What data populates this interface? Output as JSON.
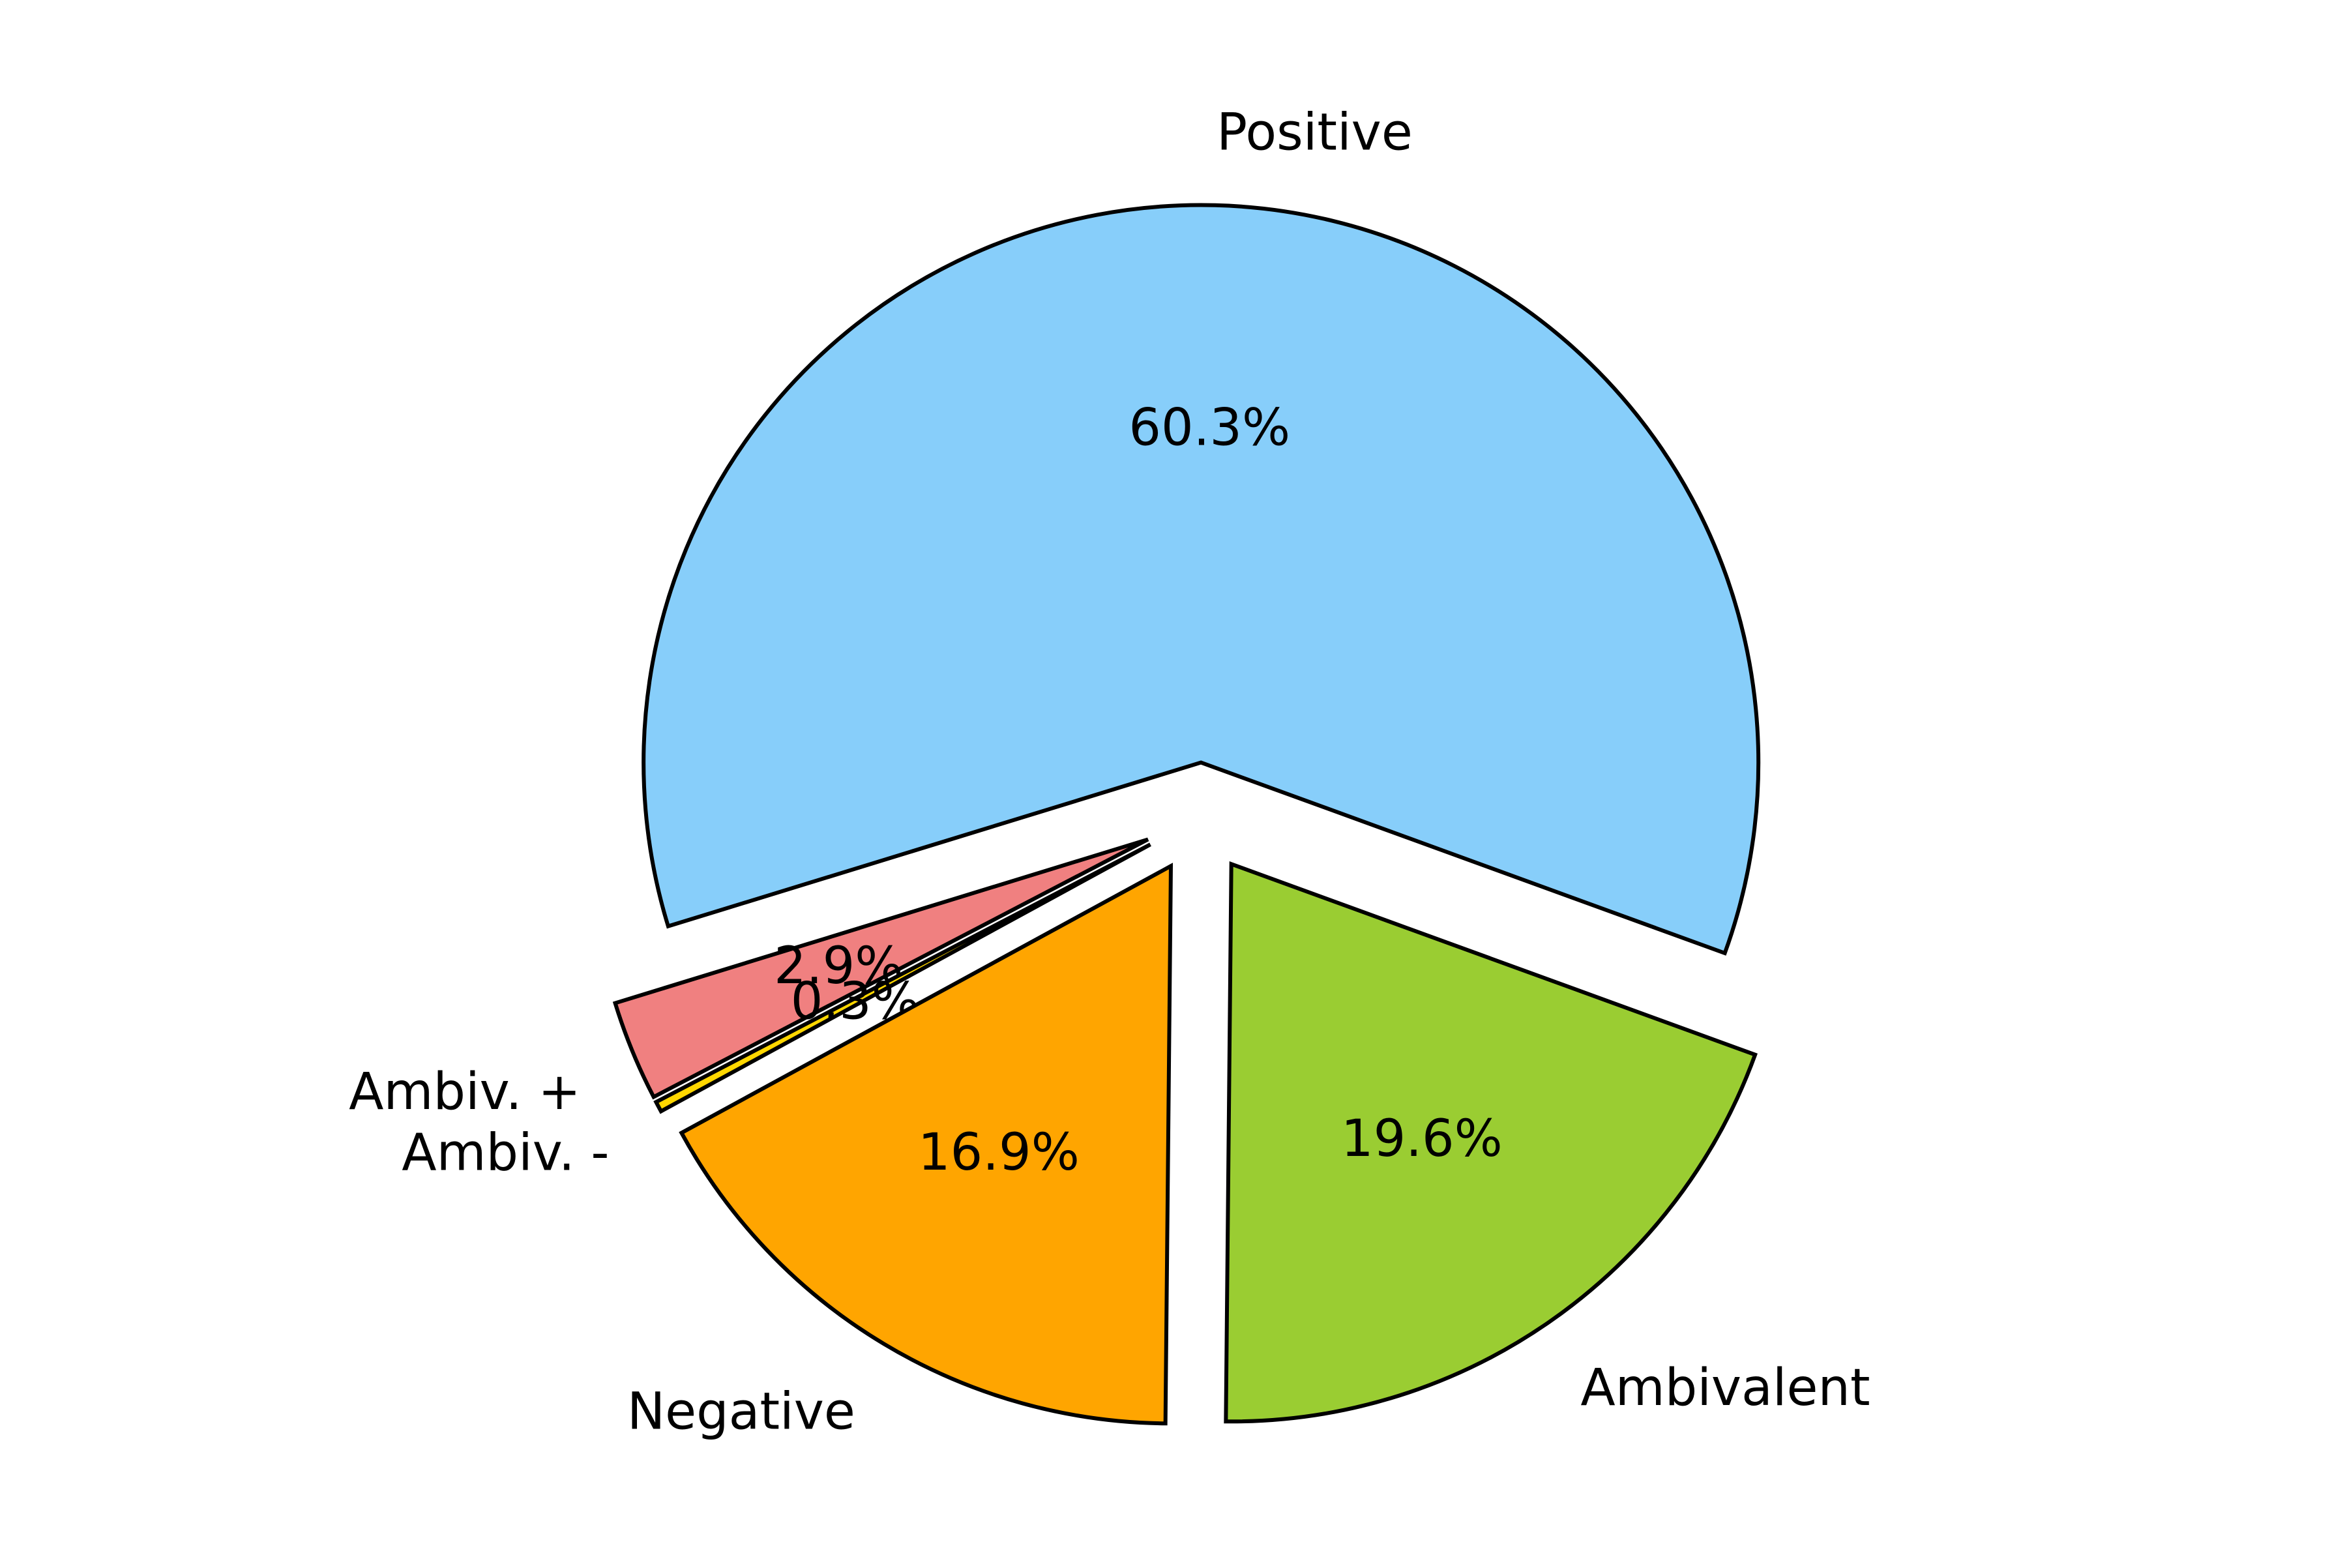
{
  "chart_data": {
    "type": "pie",
    "title": "",
    "slices": [
      {
        "label": "Positive",
        "value": 60.3,
        "pct_label": "60.3%",
        "color": "#87CEFA",
        "exploded": true
      },
      {
        "label": "Ambiv. +",
        "value": 2.9,
        "pct_label": "2.9%",
        "color": "#F08080",
        "exploded": true
      },
      {
        "label": "Ambiv. -",
        "value": 0.3,
        "pct_label": "0.3%",
        "color": "#FFD700",
        "exploded": true
      },
      {
        "label": "Negative",
        "value": 16.9,
        "pct_label": "16.9%",
        "color": "#FFA500",
        "exploded": true
      },
      {
        "label": "Ambivalent",
        "value": 19.6,
        "pct_label": "19.6%",
        "color": "#9ACD32",
        "exploded": true
      }
    ],
    "start_angle_deg": -20,
    "direction": "counterclockwise",
    "edge_color": "#000000",
    "legend": "none"
  }
}
